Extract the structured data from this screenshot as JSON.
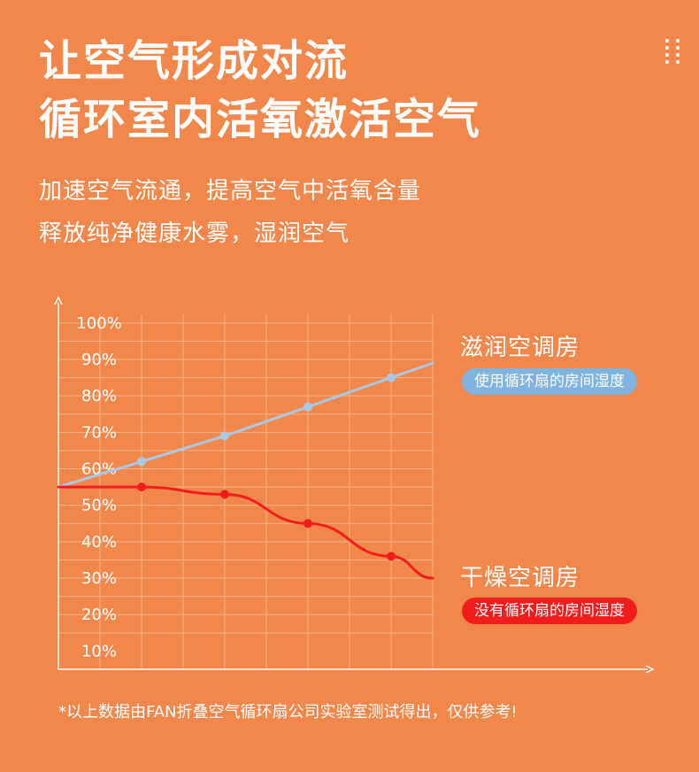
{
  "headline": [
    "让空气形成对流",
    "循环室内活氧激活空气"
  ],
  "subline": [
    "加速空气流通，提高空气中活氧含量",
    "释放纯净健康水雾，湿润空气"
  ],
  "menu_icon": "more-dots-icon",
  "footnote": "*以上数据由FAN折叠空气循环扇公司实验室测试得出，仅供参考!",
  "colors": {
    "background": "#F2874C",
    "grid": "#F7B48D",
    "humid_line": "#A9C9E8",
    "humid_pill": "#7FB3E0",
    "dry_line": "#F21C1C",
    "dry_pill": "#F21C1C"
  },
  "chart_data": {
    "type": "line",
    "x": [
      0,
      1,
      2,
      3,
      4,
      4.5
    ],
    "ylim": [
      5,
      107
    ],
    "y_ticks": [
      "10%",
      "20%",
      "30%",
      "40%",
      "50%",
      "60%",
      "70%",
      "80%",
      "90%",
      "100%"
    ],
    "y_tick_values": [
      10,
      20,
      30,
      40,
      50,
      60,
      70,
      80,
      90,
      100
    ],
    "grid": true,
    "series": [
      {
        "name": "滋润空调房",
        "label": "使用循环扇的房间湿度",
        "values": [
          55,
          62,
          69,
          77,
          85,
          89
        ],
        "markers": [
          1,
          2,
          3,
          4
        ]
      },
      {
        "name": "干燥空调房",
        "label": "没有循环扇的房间湿度",
        "values": [
          55,
          55,
          53,
          45,
          36,
          30
        ],
        "markers": [
          1,
          2,
          3,
          4
        ]
      }
    ]
  }
}
